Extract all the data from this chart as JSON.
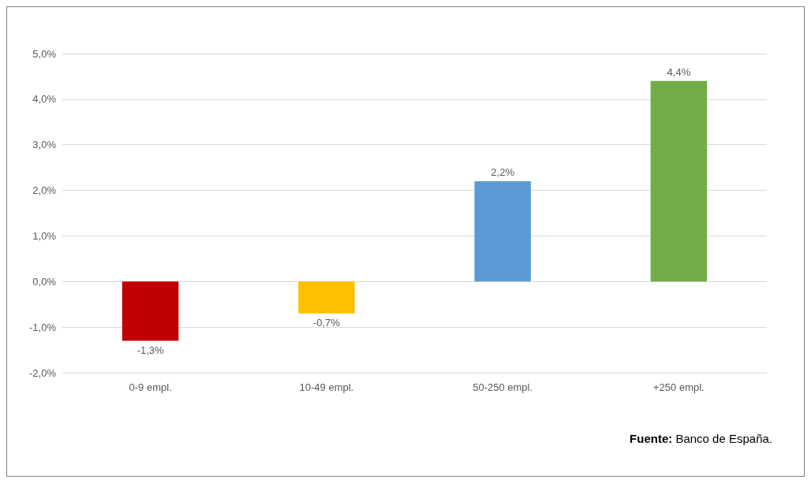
{
  "chart_data": {
    "type": "bar",
    "categories": [
      "0-9 empl.",
      "10-49 empl.",
      "50-250 empl.",
      "+250 empl."
    ],
    "values": [
      -1.3,
      -0.7,
      2.2,
      4.4
    ],
    "colors": [
      "#c00000",
      "#ffc000",
      "#5b9bd5",
      "#70ad47"
    ],
    "value_labels": [
      "-1,3%",
      "-0,7%",
      "2,2%",
      "4,4%"
    ],
    "ylim": [
      -2,
      5
    ],
    "yticks": [
      {
        "value": -2,
        "label": "-2,0%"
      },
      {
        "value": -1,
        "label": "-1,0%"
      },
      {
        "value": 0,
        "label": "0,0%"
      },
      {
        "value": 1,
        "label": "1,0%"
      },
      {
        "value": 2,
        "label": "2,0%"
      },
      {
        "value": 3,
        "label": "3,0%"
      },
      {
        "value": 4,
        "label": "4,0%"
      },
      {
        "value": 5,
        "label": "5,0%"
      }
    ],
    "grid": "y",
    "annotations": [
      "Fuente: Banco de España."
    ]
  }
}
